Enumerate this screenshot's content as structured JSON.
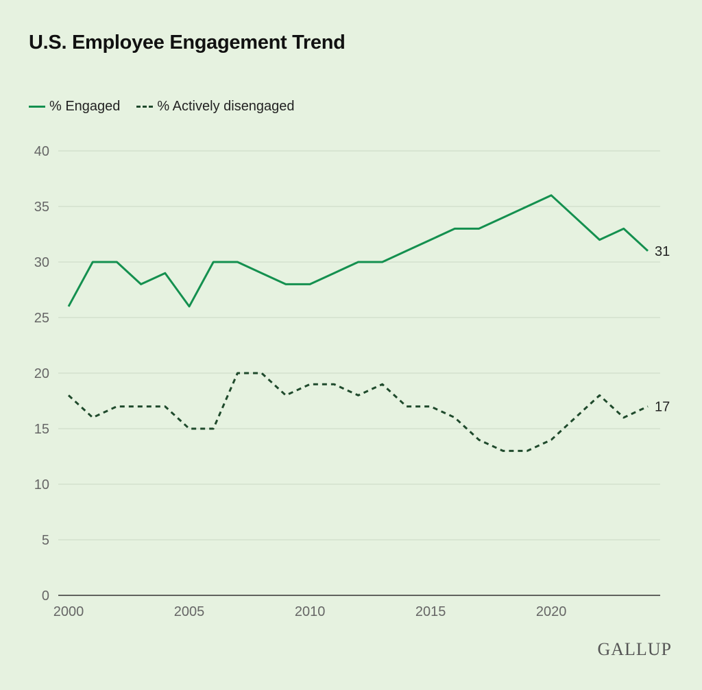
{
  "chart_data": {
    "type": "line",
    "title": "U.S. Employee Engagement Trend",
    "xlabel": "",
    "ylabel": "",
    "x": [
      2000,
      2001,
      2002,
      2003,
      2004,
      2005,
      2006,
      2007,
      2008,
      2009,
      2010,
      2011,
      2012,
      2013,
      2014,
      2015,
      2016,
      2017,
      2018,
      2019,
      2020,
      2021,
      2022,
      2023,
      2024
    ],
    "xticks": [
      "2000",
      "2005",
      "2010",
      "2015",
      "2020"
    ],
    "yticks": [
      "0",
      "5",
      "10",
      "15",
      "20",
      "25",
      "30",
      "35",
      "40"
    ],
    "ylim": [
      0,
      40
    ],
    "xlim": [
      2000,
      2024
    ],
    "grid": "horizontal",
    "legend": "top-left",
    "series": [
      {
        "name": "% Engaged",
        "style": "solid",
        "color": "#14904f",
        "values": [
          26,
          30,
          30,
          28,
          29,
          26,
          30,
          30,
          29,
          28,
          28,
          29,
          30,
          30,
          31,
          32,
          33,
          33,
          34,
          35,
          36,
          34,
          32,
          33,
          31
        ],
        "end_label": "31"
      },
      {
        "name": "% Actively disengaged",
        "style": "dashed",
        "color": "#1f4a2c",
        "values": [
          18,
          16,
          17,
          17,
          17,
          15,
          15,
          20,
          20,
          18,
          19,
          19,
          18,
          19,
          17,
          17,
          16,
          14,
          13,
          13,
          14,
          16,
          18,
          16,
          17
        ],
        "end_label": "17"
      }
    ]
  },
  "brand": "GALLUP",
  "background": "#e6f2e0"
}
